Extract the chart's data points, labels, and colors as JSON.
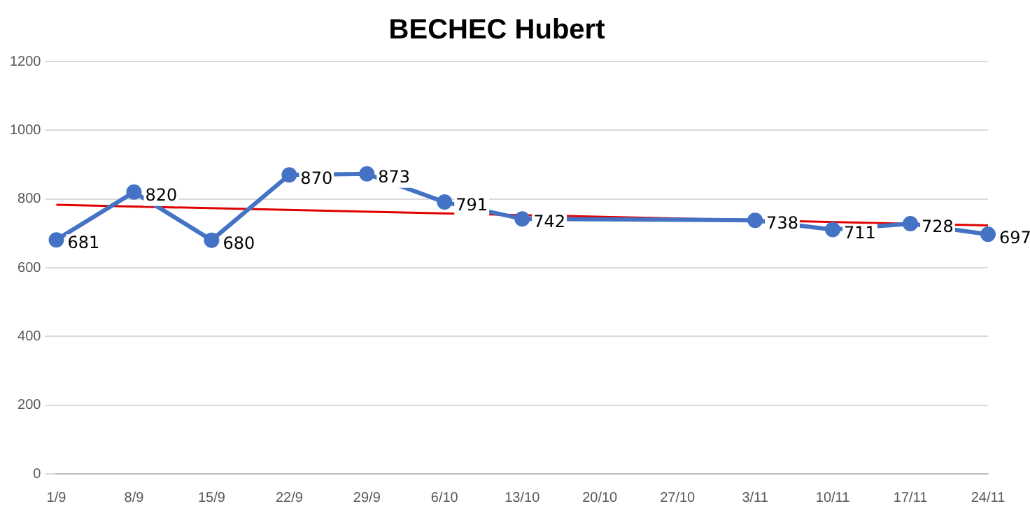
{
  "chart_data": {
    "type": "line",
    "title": "BECHEC Hubert",
    "categories": [
      "1/9",
      "8/9",
      "15/9",
      "22/9",
      "29/9",
      "6/10",
      "13/10",
      "20/10",
      "27/10",
      "3/11",
      "10/11",
      "17/11",
      "24/11"
    ],
    "series": [
      {
        "color": "#4472c4",
        "values": [
          681,
          820,
          680,
          870,
          873,
          791,
          742,
          null,
          null,
          738,
          711,
          728,
          697
        ],
        "data_labels": true,
        "marker": "circle"
      },
      {
        "type": "line",
        "color": "#e00000",
        "x": [
          "1/9",
          "24/11"
        ],
        "values": [
          783,
          723
        ],
        "marker": "none"
      }
    ],
    "ylim": [
      0,
      1200
    ],
    "yticks": [
      0,
      200,
      400,
      600,
      800,
      1000,
      1200
    ],
    "grid": "y",
    "legend": false
  }
}
